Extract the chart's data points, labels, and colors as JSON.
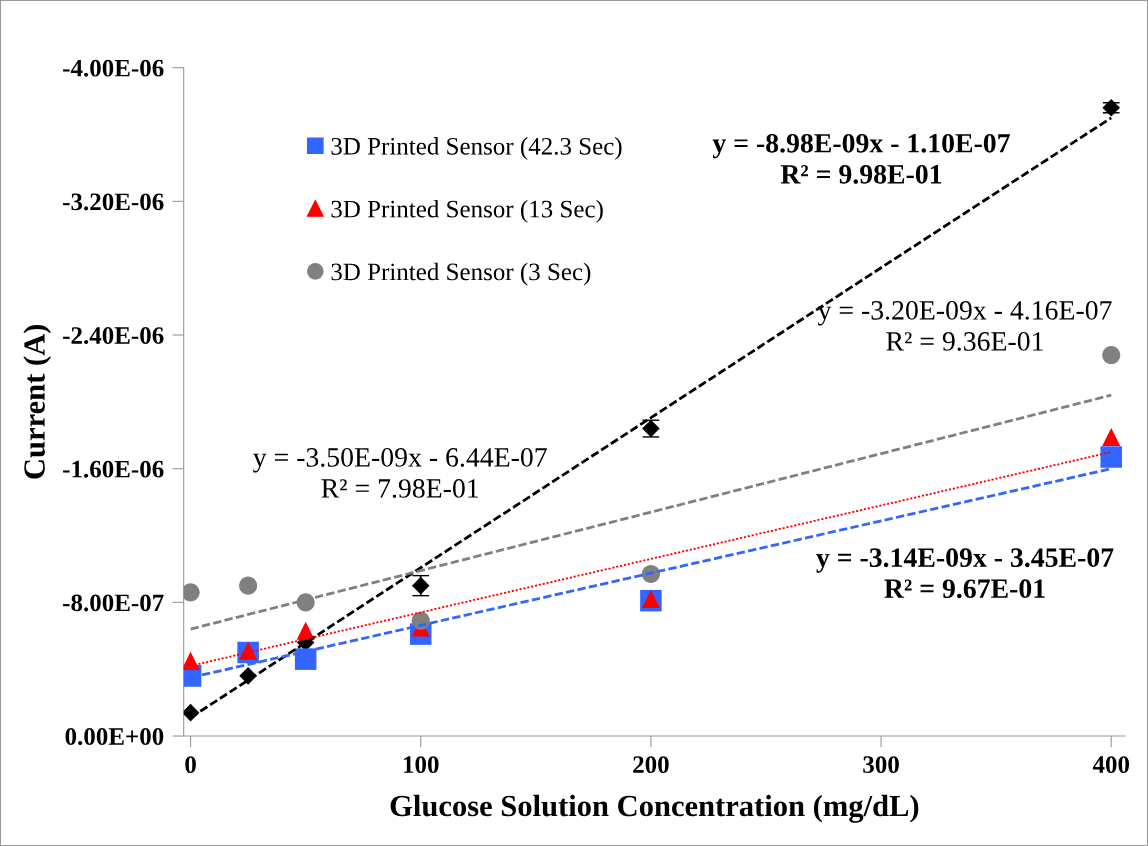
{
  "chart_data": {
    "type": "scatter",
    "xlabel": "Glucose Solution Concentration (mg/dL)",
    "ylabel": "Current (A)",
    "xlim": [
      -3,
      406
    ],
    "xticks": [
      0,
      100,
      200,
      300,
      400
    ],
    "ylim": [
      0,
      -4e-06
    ],
    "yticks": [
      {
        "value": 0,
        "label": "0.00E+00"
      },
      {
        "value": -8e-07,
        "label": "-8.00E-07"
      },
      {
        "value": -1.6e-06,
        "label": "-1.60E-06"
      },
      {
        "value": -2.4e-06,
        "label": "-2.40E-06"
      },
      {
        "value": -3.2e-06,
        "label": "-3.20E-06"
      },
      {
        "value": -4e-06,
        "label": "-4.00E-06"
      }
    ],
    "grid": false,
    "legend": "top left",
    "series": [
      {
        "color": "#000000",
        "marker": "diamond",
        "x": [
          0,
          25,
          50,
          100,
          200,
          400
        ],
        "values": [
          -1.4e-07,
          -3.6e-07,
          -5.6e-07,
          -9e-07,
          -1.84e-06,
          -3.76e-06
        ],
        "errors": [
          null,
          null,
          null,
          6e-08,
          5e-08,
          3e-08
        ]
      },
      {
        "name": "3D Printed Sensor (42.3 Sec)",
        "color": "#3366ff",
        "marker": "square",
        "x": [
          0,
          25,
          50,
          100,
          200,
          400
        ],
        "values": [
          -3.6e-07,
          -5e-07,
          -4.6e-07,
          -6.1e-07,
          -8.1e-07,
          -1.67e-06
        ]
      },
      {
        "name": "3D Printed Sensor (13 Sec)",
        "color": "#ff0000",
        "marker": "triangle",
        "x": [
          0,
          25,
          50,
          100,
          200,
          400
        ],
        "values": [
          -4.5e-07,
          -5.1e-07,
          -6.3e-07,
          -6.5e-07,
          -8.2e-07,
          -1.79e-06
        ]
      },
      {
        "name": "3D Printed Sensor (3 Sec)",
        "color": "#808080",
        "marker": "circle",
        "x": [
          0,
          25,
          50,
          100,
          200,
          400
        ],
        "values": [
          -8.6e-07,
          -9e-07,
          -8e-07,
          -6.9e-07,
          -9.7e-07,
          -2.28e-06
        ]
      },
      {
        "type": "line",
        "color": "#000000",
        "line_style": "dashed",
        "x": [
          0,
          400
        ],
        "values": [
          -1.1e-07,
          -3.7e-06
        ]
      },
      {
        "type": "line",
        "color": "#3366ff",
        "line_style": "dashed",
        "x": [
          0,
          400
        ],
        "values": [
          -3.5e-07,
          -1.6e-06
        ]
      },
      {
        "type": "line",
        "color": "#ff0000",
        "line_style": "dotted",
        "x": [
          0,
          400
        ],
        "values": [
          -4.2e-07,
          -1.7e-06
        ]
      },
      {
        "type": "line",
        "color": "#808080",
        "line_style": "dashed",
        "x": [
          0,
          400
        ],
        "values": [
          -6.4e-07,
          -2.04e-06
        ]
      }
    ],
    "annotations": [
      "y = -8.98E-09x - 1.10E-07\nR² = 9.98E-01",
      "y = -3.20E-09x - 4.16E-07\nR² = 9.36E-01",
      "y = -3.50E-09x - 6.44E-07\nR² = 7.98E-01",
      "y = -3.14E-09x - 3.45E-07\nR² = 9.67E-01"
    ]
  }
}
